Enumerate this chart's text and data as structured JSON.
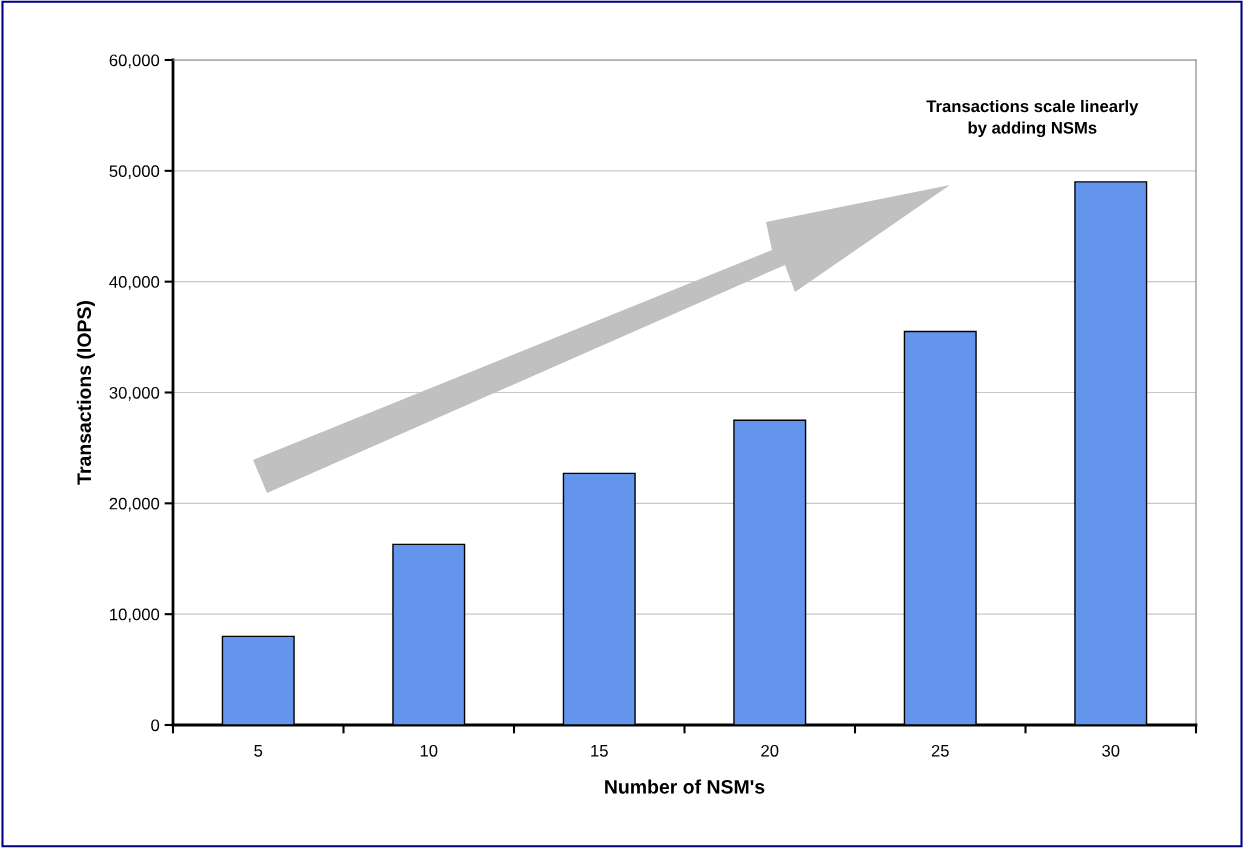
{
  "chart_data": {
    "type": "bar",
    "categories": [
      "5",
      "10",
      "15",
      "20",
      "25",
      "30"
    ],
    "values": [
      8000,
      16300,
      22700,
      27500,
      35500,
      49000
    ],
    "color": "#6495ed",
    "xlabel": "Number of NSM's",
    "ylabel": "Transactions (IOPS)",
    "ylim": [
      0,
      60000
    ],
    "yticks": [
      {
        "value": 0,
        "label": "0"
      },
      {
        "value": 10000,
        "label": "10,000"
      },
      {
        "value": 20000,
        "label": "20,000"
      },
      {
        "value": 30000,
        "label": "30,000"
      },
      {
        "value": 40000,
        "label": "40,000"
      },
      {
        "value": 50000,
        "label": "50,000"
      },
      {
        "value": 60000,
        "label": "60,000"
      }
    ],
    "grid": "y",
    "annotations": [
      "Transactions scale linearly\nby adding NSMs"
    ]
  }
}
